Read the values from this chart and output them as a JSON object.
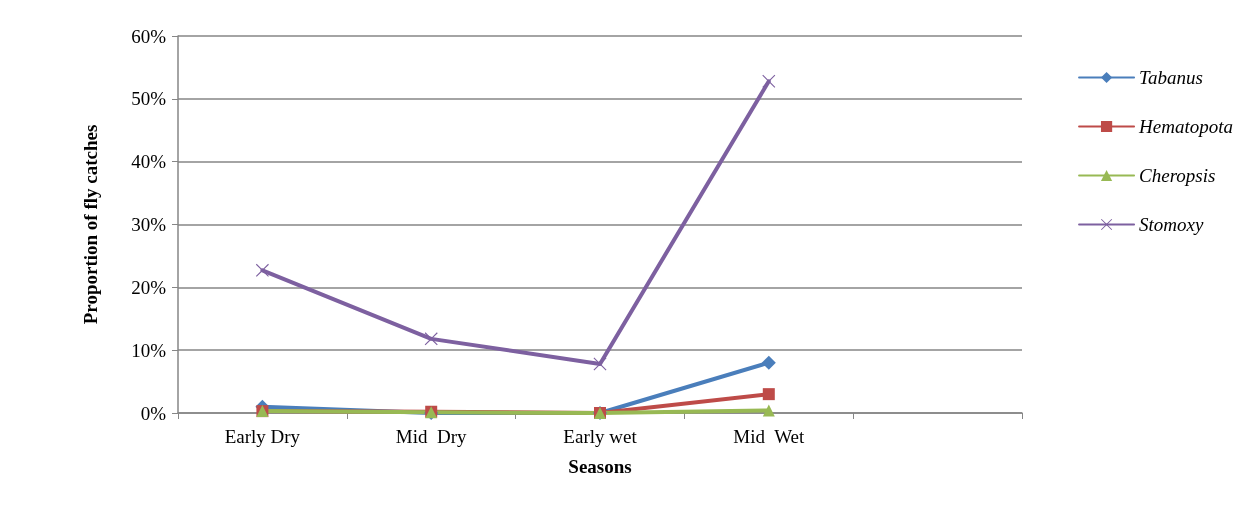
{
  "chart_data": {
    "type": "line",
    "xlabel": "Seasons",
    "ylabel": "Proportion of fly catches",
    "categories": [
      "Early Dry",
      "Mid  Dry",
      "Early wet",
      "Mid  Wet",
      null
    ],
    "series": [
      {
        "name": "Tabanus",
        "color": "#4a7ebb",
        "marker": "diamond",
        "values": [
          1,
          0,
          0,
          8,
          null
        ]
      },
      {
        "name": "Hematopota",
        "color": "#be4b48",
        "marker": "square",
        "values": [
          0.3,
          0.2,
          0,
          3,
          null
        ]
      },
      {
        "name": "Cheropsis",
        "color": "#98b954",
        "marker": "triangle",
        "values": [
          0.3,
          0.1,
          0,
          0.4,
          null
        ]
      },
      {
        "name": "Stomoxy",
        "color": "#7d60a0",
        "marker": "cross",
        "values": [
          22.7,
          11.8,
          7.8,
          52.8,
          null
        ]
      }
    ],
    "ylim": [
      0,
      60
    ],
    "yticks": [
      {
        "value": 0,
        "label": "0%"
      },
      {
        "value": 10,
        "label": "10%"
      },
      {
        "value": 20,
        "label": "20%"
      },
      {
        "value": 30,
        "label": "30%"
      },
      {
        "value": 40,
        "label": "40%"
      },
      {
        "value": 50,
        "label": "50%"
      },
      {
        "value": 60,
        "label": "60%"
      }
    ],
    "grid": "y",
    "legend": "right",
    "line_style": "solid"
  }
}
